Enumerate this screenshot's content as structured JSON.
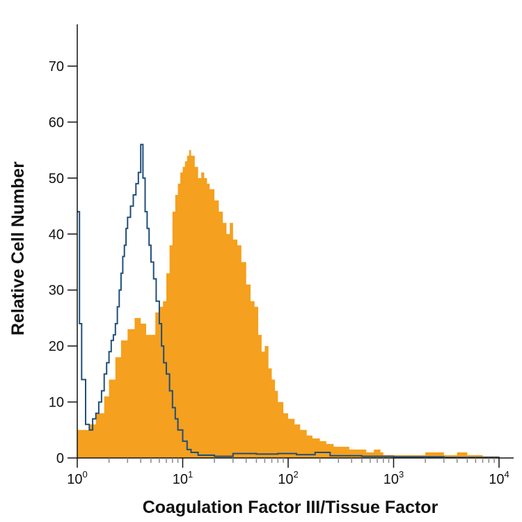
{
  "chart_data": {
    "type": "area",
    "title": "",
    "xlabel": "Coagulation Factor III/Tissue Factor",
    "ylabel": "Relative Cell Number",
    "x_scale": "log",
    "xlim": [
      1,
      10000
    ],
    "ylim": [
      0,
      75
    ],
    "grid": false,
    "legend": "none",
    "x_ticks": [
      {
        "value": 1,
        "base": "10",
        "exp": "0"
      },
      {
        "value": 10,
        "base": "10",
        "exp": "1"
      },
      {
        "value": 100,
        "base": "10",
        "exp": "2"
      },
      {
        "value": 1000,
        "base": "10",
        "exp": "3"
      },
      {
        "value": 10000,
        "base": "10",
        "exp": "4"
      }
    ],
    "y_ticks": [
      0,
      10,
      20,
      30,
      40,
      50,
      60,
      70
    ],
    "series": [
      {
        "style": "filled",
        "color": "#F5A01E",
        "x": [
          1,
          1.3,
          1.5,
          1.8,
          2.0,
          2.3,
          2.6,
          3.0,
          3.5,
          4.0,
          4.5,
          5.0,
          5.5,
          6.0,
          6.5,
          7.0,
          7.5,
          8.0,
          8.5,
          9.0,
          9.5,
          10,
          10.5,
          11,
          11.5,
          12,
          13,
          14,
          15,
          16,
          17,
          18,
          20,
          22,
          24,
          26,
          28,
          30,
          33,
          36,
          40,
          44,
          48,
          52,
          56,
          60,
          65,
          70,
          75,
          80,
          90,
          100,
          115,
          130,
          150,
          170,
          200,
          230,
          270,
          320,
          380,
          450,
          550,
          650,
          750,
          800,
          1000,
          1500,
          2000,
          3000,
          4000,
          5000,
          7000,
          10000
        ],
        "y": [
          5,
          6,
          8,
          11,
          14,
          18,
          21,
          23,
          25,
          24,
          22,
          22,
          26,
          27,
          28,
          33,
          38,
          44,
          47,
          49,
          51,
          52,
          53,
          54,
          55,
          54,
          52,
          50,
          51,
          50,
          49,
          48,
          46,
          44,
          42,
          40,
          42,
          39,
          38,
          35,
          31,
          28,
          27,
          22,
          19,
          20,
          16,
          14,
          12,
          10,
          8,
          7,
          6,
          5,
          4,
          3.5,
          3,
          2.5,
          2,
          2,
          1.5,
          1.5,
          1,
          1.5,
          1,
          0.5,
          0.5,
          0.5,
          1,
          0.5,
          1,
          0.5,
          0.3,
          0
        ]
      },
      {
        "style": "outline",
        "color": "#1F4E79",
        "x": [
          1,
          1.05,
          1.1,
          1.2,
          1.3,
          1.4,
          1.5,
          1.6,
          1.7,
          1.8,
          1.9,
          2.0,
          2.1,
          2.2,
          2.3,
          2.4,
          2.5,
          2.6,
          2.7,
          2.8,
          2.9,
          3.0,
          3.2,
          3.4,
          3.6,
          3.8,
          4.0,
          4.2,
          4.4,
          4.6,
          4.8,
          5.0,
          5.3,
          5.6,
          6.0,
          6.3,
          6.6,
          7.0,
          7.5,
          8.0,
          8.5,
          9.0,
          10,
          11,
          12,
          14,
          16,
          20,
          30,
          50,
          80,
          120,
          180,
          250,
          500,
          1000,
          3000,
          10000
        ],
        "y": [
          44,
          24,
          14,
          6,
          5,
          7,
          8,
          10,
          12,
          15,
          17,
          19,
          21,
          22,
          24,
          27,
          30,
          33,
          36,
          38,
          41,
          43,
          45,
          47,
          49,
          51,
          56,
          50,
          44,
          41,
          38,
          35,
          32,
          28,
          24,
          20,
          17,
          15,
          12,
          9,
          7,
          5,
          3,
          1.5,
          1,
          0.5,
          0.5,
          0.3,
          0.8,
          0.7,
          0.8,
          0.6,
          1,
          0.4,
          0.3,
          0.2,
          0.1,
          0
        ]
      }
    ]
  }
}
